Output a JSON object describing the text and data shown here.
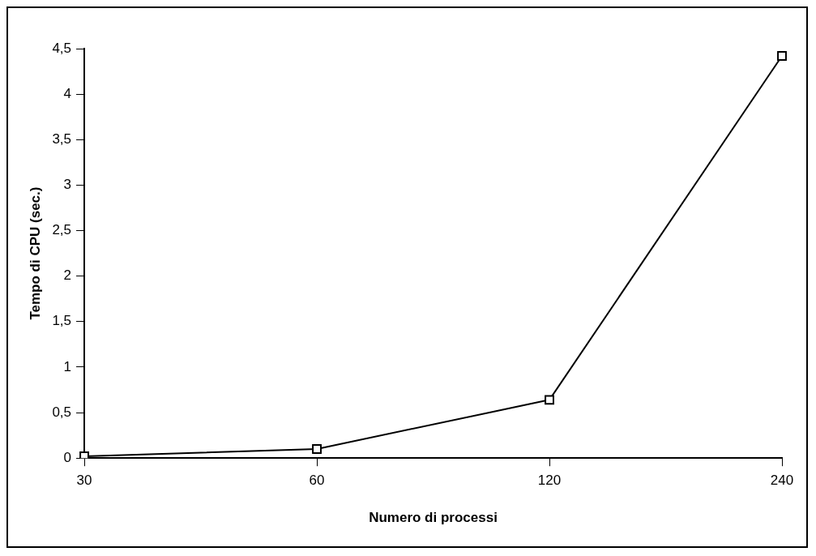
{
  "chart_data": {
    "type": "line",
    "xlabel": "Numero di processi",
    "ylabel": "Tempo di CPU (sec.)",
    "categories": [
      "30",
      "60",
      "120",
      "240"
    ],
    "series": [
      {
        "color": "#000000",
        "values": [
          0.02,
          0.1,
          0.64,
          4.42
        ]
      }
    ],
    "ylim": [
      0,
      4.5
    ],
    "yticks": [
      0,
      {
        "value": 0.5,
        "label": "0,5"
      },
      1,
      {
        "value": 1.5,
        "label": "1,5"
      },
      2,
      {
        "value": 2.5,
        "label": "2,5"
      },
      3,
      {
        "value": 3.5,
        "label": "3,5"
      },
      4,
      {
        "value": 4.5,
        "label": "4,5"
      }
    ],
    "grid": false,
    "legend": false,
    "marker": "square",
    "line_style": "solid"
  }
}
